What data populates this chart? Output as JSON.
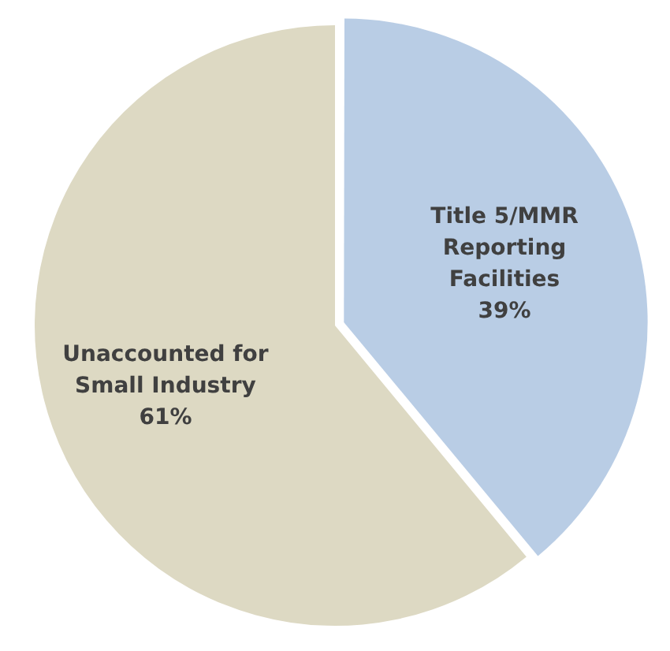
{
  "chart_data": {
    "type": "pie",
    "categories": [
      "Title 5/MMR Reporting Facilities",
      "Unaccounted for Small Industry"
    ],
    "values": [
      39,
      61
    ],
    "colors": [
      "#b9cde5",
      "#ddd9c3"
    ],
    "value_labels": [
      "39%",
      "61%"
    ],
    "legend": false
  }
}
